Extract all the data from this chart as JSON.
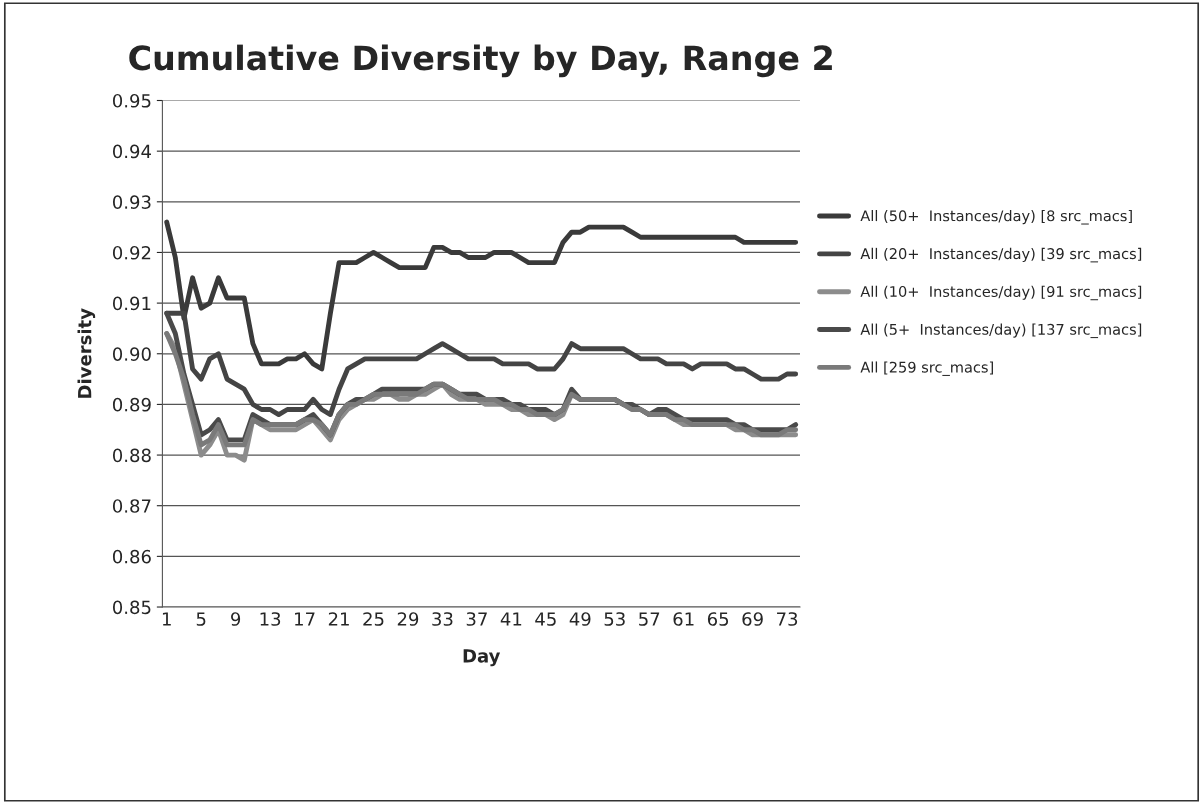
{
  "chart_data": {
    "type": "line",
    "title": "Cumulative Diversity by Day, Range 2",
    "xlabel": "Day",
    "ylabel": "Diversity",
    "categories": [
      "1",
      null,
      null,
      null,
      "5",
      null,
      null,
      null,
      "9",
      null,
      null,
      null,
      "13",
      null,
      null,
      null,
      "17",
      null,
      null,
      null,
      "21",
      null,
      null,
      null,
      "25",
      null,
      null,
      null,
      "29",
      null,
      null,
      null,
      "33",
      null,
      null,
      null,
      "37",
      null,
      null,
      null,
      "41",
      null,
      null,
      null,
      "45",
      null,
      null,
      null,
      "49",
      null,
      null,
      null,
      "53",
      null,
      null,
      null,
      "57",
      null,
      null,
      null,
      "61",
      null,
      null,
      null,
      "65",
      null,
      null,
      null,
      "69",
      null,
      null,
      null,
      "73",
      null
    ],
    "series": [
      {
        "name": "All (50+  Instances/day) [8 src_macs]",
        "color": "#3a3a3a",
        "values": [
          0.926,
          0.919,
          0.907,
          0.915,
          0.909,
          0.91,
          0.915,
          0.911,
          0.911,
          0.911,
          0.902,
          0.898,
          0.898,
          0.898,
          0.899,
          0.899,
          0.9,
          0.898,
          0.897,
          0.908,
          0.918,
          0.918,
          0.918,
          0.919,
          0.92,
          0.919,
          0.918,
          0.917,
          0.917,
          0.917,
          0.917,
          0.921,
          0.921,
          0.92,
          0.92,
          0.919,
          0.919,
          0.919,
          0.92,
          0.92,
          0.92,
          0.919,
          0.918,
          0.918,
          0.918,
          0.918,
          0.922,
          0.924,
          0.924,
          0.925,
          0.925,
          0.925,
          0.925,
          0.925,
          0.924,
          0.923,
          0.923,
          0.923,
          0.923,
          0.923,
          0.923,
          0.923,
          0.923,
          0.923,
          0.923,
          0.923,
          0.923,
          0.922,
          0.922,
          0.922,
          0.922,
          0.922,
          0.922,
          0.922
        ]
      },
      {
        "name": "All (20+  Instances/day) [39 src_macs]",
        "color": "#444444",
        "values": [
          0.908,
          0.908,
          0.908,
          0.897,
          0.895,
          0.899,
          0.9,
          0.895,
          0.894,
          0.893,
          0.89,
          0.889,
          0.889,
          0.888,
          0.889,
          0.889,
          0.889,
          0.891,
          0.889,
          0.888,
          0.893,
          0.897,
          0.898,
          0.899,
          0.899,
          0.899,
          0.899,
          0.899,
          0.899,
          0.899,
          0.9,
          0.901,
          0.902,
          0.901,
          0.9,
          0.899,
          0.899,
          0.899,
          0.899,
          0.898,
          0.898,
          0.898,
          0.898,
          0.897,
          0.897,
          0.897,
          0.899,
          0.902,
          0.901,
          0.901,
          0.901,
          0.901,
          0.901,
          0.901,
          0.9,
          0.899,
          0.899,
          0.899,
          0.898,
          0.898,
          0.898,
          0.897,
          0.898,
          0.898,
          0.898,
          0.898,
          0.897,
          0.897,
          0.896,
          0.895,
          0.895,
          0.895,
          0.896,
          0.896
        ]
      },
      {
        "name": "All (10+  Instances/day) [91 src_macs]",
        "color": "#8c8c8c",
        "values": [
          0.904,
          0.901,
          0.894,
          0.887,
          0.88,
          0.882,
          0.885,
          0.88,
          0.88,
          0.879,
          0.887,
          0.886,
          0.885,
          0.885,
          0.885,
          0.885,
          0.886,
          0.887,
          0.885,
          0.883,
          0.887,
          0.889,
          0.89,
          0.891,
          0.891,
          0.892,
          0.892,
          0.891,
          0.891,
          0.892,
          0.892,
          0.893,
          0.894,
          0.892,
          0.891,
          0.891,
          0.891,
          0.89,
          0.89,
          0.89,
          0.889,
          0.889,
          0.888,
          0.888,
          0.888,
          0.887,
          0.888,
          0.892,
          0.891,
          0.891,
          0.891,
          0.891,
          0.891,
          0.89,
          0.889,
          0.889,
          0.888,
          0.888,
          0.888,
          0.887,
          0.886,
          0.886,
          0.886,
          0.886,
          0.886,
          0.886,
          0.885,
          0.885,
          0.884,
          0.884,
          0.884,
          0.884,
          0.884,
          0.884
        ]
      },
      {
        "name": "All (5+  Instances/day) [137 src_macs]",
        "color": "#4a4a4a",
        "values": [
          0.908,
          0.904,
          0.896,
          0.89,
          0.884,
          0.885,
          0.887,
          0.883,
          0.883,
          0.883,
          0.888,
          0.887,
          0.886,
          0.886,
          0.886,
          0.886,
          0.887,
          0.888,
          0.886,
          0.884,
          0.888,
          0.89,
          0.891,
          0.891,
          0.892,
          0.893,
          0.893,
          0.893,
          0.893,
          0.893,
          0.893,
          0.894,
          0.894,
          0.893,
          0.892,
          0.892,
          0.892,
          0.891,
          0.891,
          0.891,
          0.89,
          0.89,
          0.889,
          0.889,
          0.889,
          0.888,
          0.889,
          0.893,
          0.891,
          0.891,
          0.891,
          0.891,
          0.891,
          0.89,
          0.89,
          0.889,
          0.888,
          0.889,
          0.889,
          0.888,
          0.887,
          0.887,
          0.887,
          0.887,
          0.887,
          0.887,
          0.886,
          0.886,
          0.885,
          0.885,
          0.885,
          0.885,
          0.885,
          0.886
        ]
      },
      {
        "name": "All [259 src_macs]",
        "color": "#7a7a7a",
        "values": [
          0.904,
          0.9,
          0.895,
          0.888,
          0.882,
          0.883,
          0.886,
          0.882,
          0.882,
          0.882,
          0.887,
          0.886,
          0.886,
          0.886,
          0.886,
          0.886,
          0.887,
          0.887,
          0.886,
          0.884,
          0.888,
          0.89,
          0.89,
          0.891,
          0.892,
          0.892,
          0.892,
          0.892,
          0.892,
          0.892,
          0.893,
          0.894,
          0.894,
          0.893,
          0.892,
          0.891,
          0.891,
          0.891,
          0.891,
          0.89,
          0.89,
          0.889,
          0.889,
          0.888,
          0.888,
          0.888,
          0.889,
          0.892,
          0.891,
          0.891,
          0.891,
          0.891,
          0.891,
          0.89,
          0.889,
          0.889,
          0.888,
          0.888,
          0.888,
          0.887,
          0.887,
          0.886,
          0.886,
          0.886,
          0.886,
          0.886,
          0.886,
          0.885,
          0.885,
          0.884,
          0.884,
          0.884,
          0.885,
          0.885
        ]
      }
    ],
    "ylim": [
      0.85,
      0.95
    ],
    "yticks": [
      0.85,
      0.86,
      0.87,
      0.88,
      0.89,
      {
        "value": 0.9,
        "label": "0.90"
      },
      0.91,
      0.92,
      0.93,
      0.94,
      0.95
    ],
    "grid": "y",
    "legend": "right"
  }
}
